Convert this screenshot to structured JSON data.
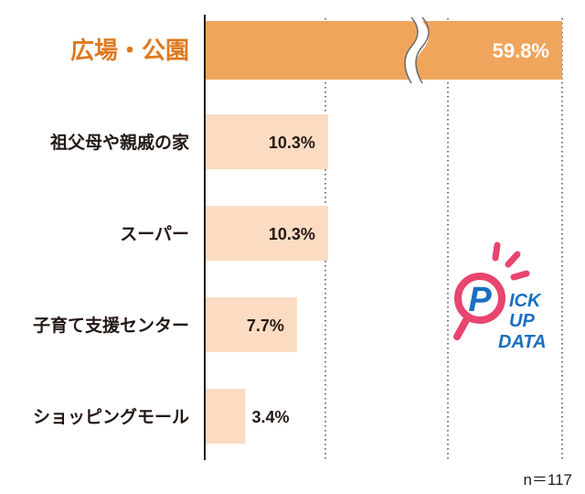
{
  "chart_data": {
    "type": "bar",
    "orientation": "horizontal",
    "categories": [
      "広場・公園",
      "祖父母や親戚の家",
      "スーパー",
      "子育て支援センター",
      "ショッピングモール"
    ],
    "values": [
      59.8,
      10.3,
      10.3,
      7.7,
      3.4
    ],
    "value_labels": [
      "59.8%",
      "10.3%",
      "10.3%",
      "7.7%",
      "3.4%"
    ],
    "highlighted_category": "広場・公園",
    "axis_break": true,
    "grid": "dotted vertical",
    "sample_size_label": "n＝117"
  },
  "logo": {
    "line1": "ICK",
    "line2": "UP",
    "line3": "DATA",
    "letter": "P"
  },
  "colors": {
    "highlight_bar": "#f0a55d",
    "bar": "#fbdcc2",
    "highlight_text": "#e0781e",
    "text": "#231815",
    "logo_blue": "#1a6fc0",
    "logo_pink": "#e8456f"
  }
}
